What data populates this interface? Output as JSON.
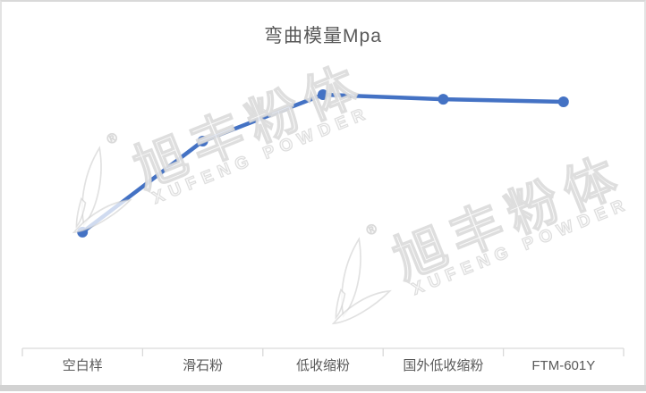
{
  "chart_data": {
    "type": "line",
    "title": "弯曲模量Mpa",
    "categories": [
      "空白样",
      "滑石粉",
      "低收缩粉",
      "国外低收缩粉",
      "FTM-601Y"
    ],
    "values": [
      0.458,
      0.817,
      1.0,
      0.982,
      0.972
    ],
    "value_axis_visible": false,
    "value_axis_note": "no value axis or data labels shown; values are relative heights (max = 1.0)",
    "gridlines": false,
    "legend": "none",
    "line_color": "#4472C4",
    "marker": "circle"
  },
  "watermark": {
    "cn": "旭丰粉体",
    "en": "XUFENG POWDER",
    "registered": "®"
  },
  "colors": {
    "accent": "#4472C4",
    "title_text": "#595959",
    "label_text": "#595959",
    "axis_line": "#D9D9D9",
    "border": "#D9D9D9",
    "bottom_bar": "#D2D2D2",
    "watermark_outline": "#CDCDCD"
  }
}
